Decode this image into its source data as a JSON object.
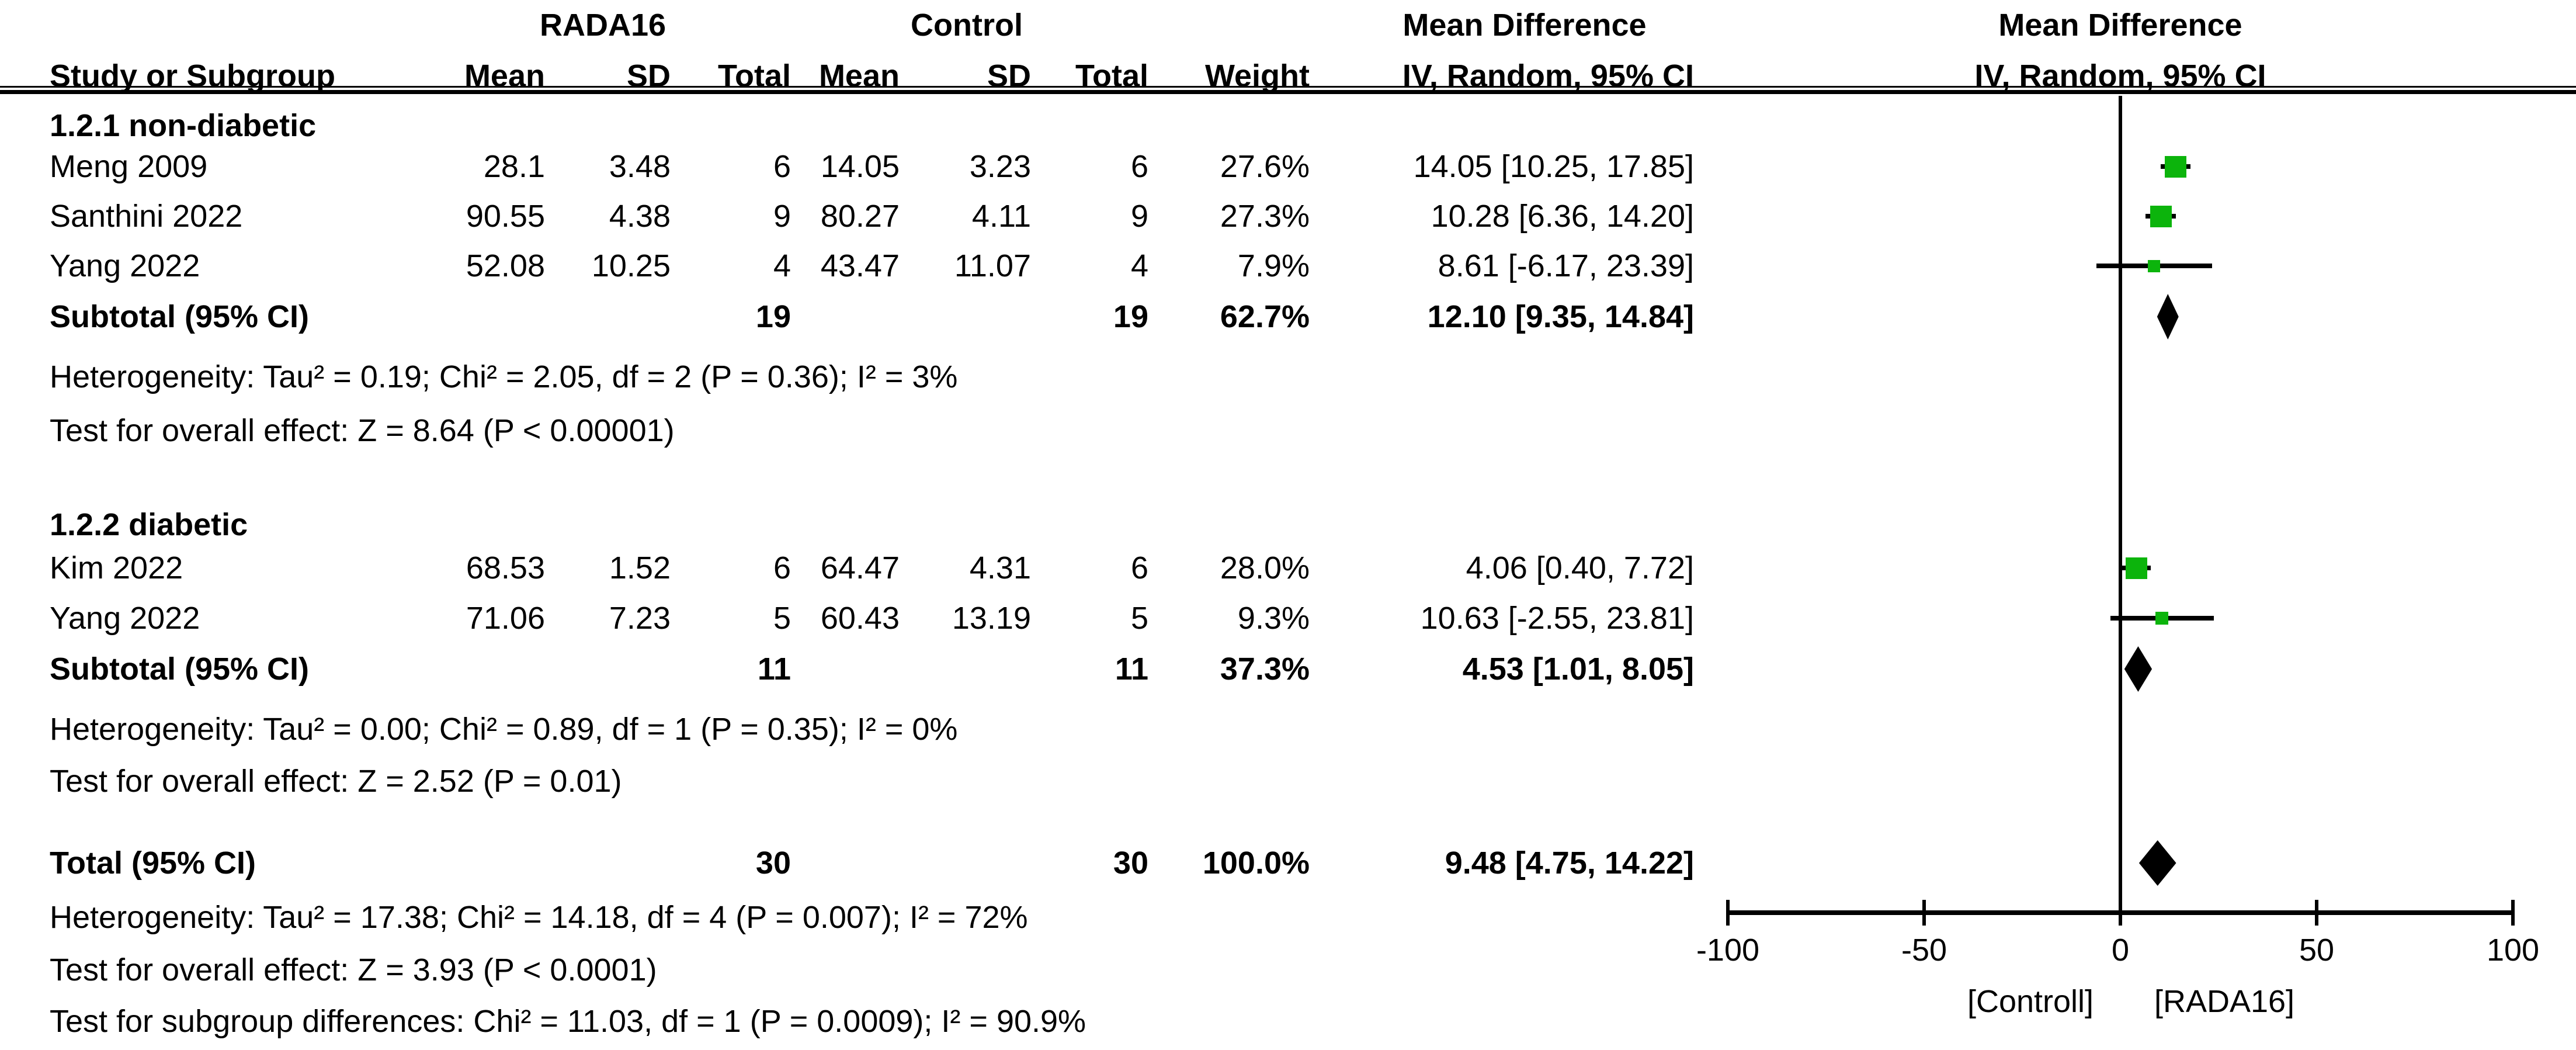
{
  "header": {
    "group_rada16": "RADA16",
    "group_control": "Control",
    "md_table": "Mean Difference",
    "md_plot": "Mean Difference",
    "col_study": "Study or Subgroup",
    "col_mean": "Mean",
    "col_sd": "SD",
    "col_total": "Total",
    "col_weight": "Weight",
    "col_iv_table": "IV, Random, 95% CI",
    "col_iv_plot": "IV, Random, 95% CI"
  },
  "table": {
    "section1": {
      "label": "1.2.1 non-diabetic",
      "rows": [
        {
          "study": "Meng 2009",
          "m1": "28.1",
          "sd1": "3.48",
          "n1": "6",
          "m2": "14.05",
          "sd2": "3.23",
          "n2": "6",
          "weight": "27.6%",
          "ci": "14.05 [10.25, 17.85]"
        },
        {
          "study": "Santhini 2022",
          "m1": "90.55",
          "sd1": "4.38",
          "n1": "9",
          "m2": "80.27",
          "sd2": "4.11",
          "n2": "9",
          "weight": "27.3%",
          "ci": "10.28 [6.36, 14.20]"
        },
        {
          "study": "Yang 2022",
          "m1": "52.08",
          "sd1": "10.25",
          "n1": "4",
          "m2": "43.47",
          "sd2": "11.07",
          "n2": "4",
          "weight": "7.9%",
          "ci": "8.61 [-6.17, 23.39]"
        }
      ],
      "subtotal": {
        "label": "Subtotal (95% CI)",
        "n1": "19",
        "n2": "19",
        "weight": "62.7%",
        "ci": "12.10 [9.35, 14.84]"
      },
      "heterogeneity": "Heterogeneity: Tau² = 0.19; Chi² = 2.05, df = 2 (P = 0.36); I² = 3%",
      "overall_effect": "Test for overall effect: Z = 8.64 (P < 0.00001)"
    },
    "section2": {
      "label": "1.2.2 diabetic",
      "rows": [
        {
          "study": "Kim 2022",
          "m1": "68.53",
          "sd1": "1.52",
          "n1": "6",
          "m2": "64.47",
          "sd2": "4.31",
          "n2": "6",
          "weight": "28.0%",
          "ci": "4.06 [0.40, 7.72]"
        },
        {
          "study": "Yang 2022",
          "m1": "71.06",
          "sd1": "7.23",
          "n1": "5",
          "m2": "60.43",
          "sd2": "13.19",
          "n2": "5",
          "weight": "9.3%",
          "ci": "10.63 [-2.55, 23.81]"
        }
      ],
      "subtotal": {
        "label": "Subtotal (95% CI)",
        "n1": "11",
        "n2": "11",
        "weight": "37.3%",
        "ci": "4.53 [1.01, 8.05]"
      },
      "heterogeneity": "Heterogeneity: Tau² = 0.00; Chi² = 0.89, df = 1 (P = 0.35); I² = 0%",
      "overall_effect": "Test for overall effect: Z = 2.52 (P = 0.01)"
    },
    "total_row": {
      "label": "Total (95% CI)",
      "n1": "30",
      "n2": "30",
      "weight": "100.0%",
      "ci": "9.48 [4.75, 14.22]"
    },
    "footer": {
      "heterogeneity": "Heterogeneity: Tau² = 17.38; Chi² = 14.18, df = 4 (P = 0.007); I² = 72%",
      "overall_effect": "Test for overall effect: Z = 3.93 (P < 0.0001)",
      "subgroup_diff": "Test for subgroup differences: Chi² = 11.03, df = 1 (P = 0.0009); I² = 90.9%"
    }
  },
  "axis": {
    "tick_labels": [
      "-100",
      "-50",
      "0",
      "50",
      "100"
    ],
    "label_left": "[Controll]",
    "label_right": "[RADA16]"
  },
  "chart_data": {
    "type": "forest",
    "title": "Mean Difference, IV, Random, 95% CI",
    "xlim": [
      -100,
      100
    ],
    "x_ticks": [
      -100,
      -50,
      0,
      50,
      100
    ],
    "zero_line": 0,
    "axis_label_left": "[Controll]",
    "axis_label_right": "[RADA16]",
    "groups": [
      {
        "name": "1.2.1 non-diabetic",
        "studies": [
          {
            "label": "Meng 2009",
            "md": 14.05,
            "ci": [
              10.25,
              17.85
            ],
            "weight_pct": 27.6,
            "row_y": 285
          },
          {
            "label": "Santhini 2022",
            "md": 10.28,
            "ci": [
              6.36,
              14.2
            ],
            "weight_pct": 27.3,
            "row_y": 370
          },
          {
            "label": "Yang 2022",
            "md": 8.61,
            "ci": [
              -6.17,
              23.39
            ],
            "weight_pct": 7.9,
            "row_y": 455
          }
        ],
        "subtotal": {
          "md": 12.1,
          "ci": [
            9.35,
            14.84
          ],
          "row_y": 542
        }
      },
      {
        "name": "1.2.2 diabetic",
        "studies": [
          {
            "label": "Kim 2022",
            "md": 4.06,
            "ci": [
              0.4,
              7.72
            ],
            "weight_pct": 28.0,
            "row_y": 972
          },
          {
            "label": "Yang 2022",
            "md": 10.63,
            "ci": [
              -2.55,
              23.81
            ],
            "weight_pct": 9.3,
            "row_y": 1058
          }
        ],
        "subtotal": {
          "md": 4.53,
          "ci": [
            1.01,
            8.05
          ],
          "row_y": 1145
        }
      }
    ],
    "total": {
      "md": 9.48,
      "ci": [
        4.75,
        14.22
      ],
      "row_y": 1477
    },
    "colors": {
      "square": "#0CB40C",
      "diamond": "#000000",
      "line": "#000000"
    }
  }
}
